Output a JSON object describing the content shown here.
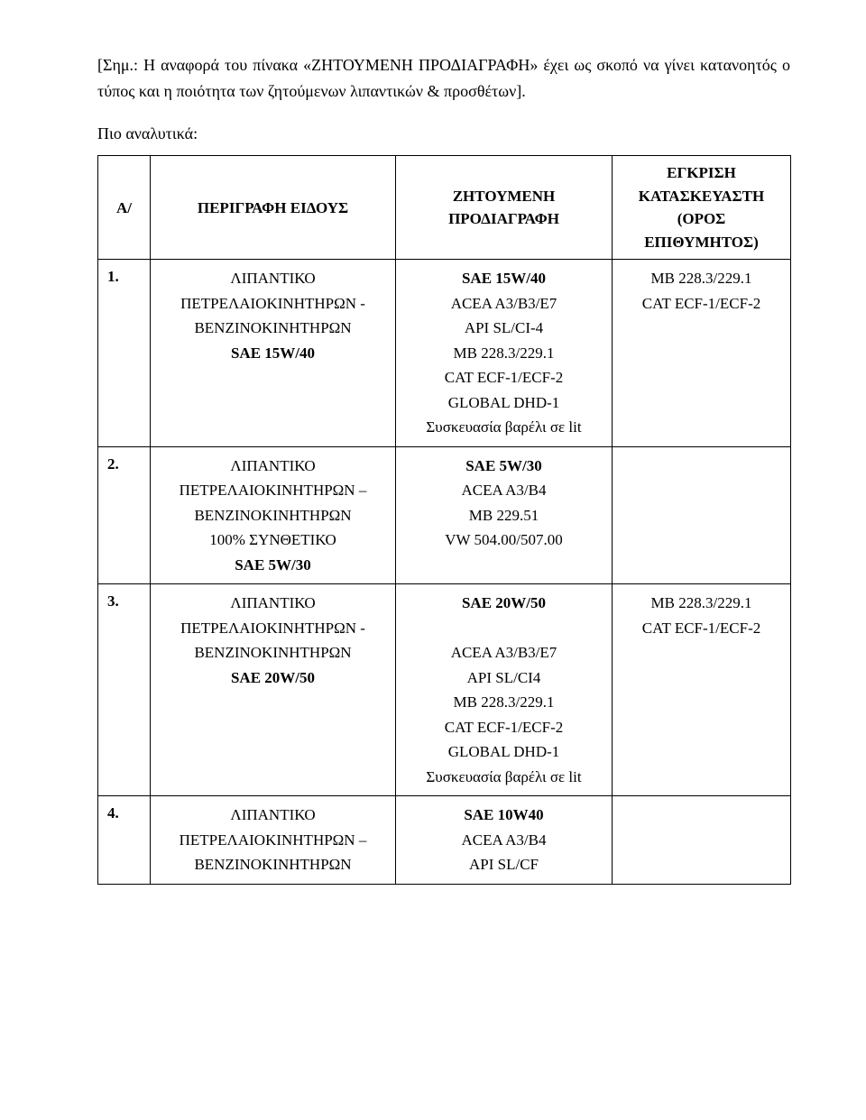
{
  "intro": "[Σημ.: Η αναφορά του πίνακα «ΖΗΤΟΥΜΕΝΗ ΠΡΟΔΙΑΓΡΑΦΗ» έχει ως σκοπό να γίνει κατανοητός ο τύπος και η ποιότητα των ζητούμενων λιπαντικών & προσθέτων].",
  "sub": "Πιο αναλυτικά:",
  "header": {
    "col1": "Α/",
    "col2": "ΠΕΡΙΓΡΑΦΗ ΕΙΔΟΥΣ",
    "col3a": "ΖΗΤΟΥΜΕΝΗ",
    "col3b": "ΠΡΟΔΙΑΓΡΑΦΗ",
    "col4a": "ΕΓΚΡΙΣΗ",
    "col4b": "ΚΑΤΑΣΚΕΥΑΣΤΗ",
    "col4c": "(ΟΡΟΣ ΕΠΙΘΥΜΗΤΟΣ)"
  },
  "rows": [
    {
      "num": "1.",
      "desc": [
        "ΛΙΠΑΝΤΙΚΟ",
        "ΠΕΤΡΕΛΑΙΟΚΙΝΗΤΗΡΩΝ -",
        "ΒΕΝΖΙΝΟΚΙΝΗΤΗΡΩΝ",
        "SAE 15W/40"
      ],
      "desc_bold": [
        false,
        false,
        false,
        true
      ],
      "spec": [
        "SAE 15W/40",
        "ACEA A3/B3/E7",
        "API SL/CI-4",
        "MB 228.3/229.1",
        "CAT ECF-1/ECF-2",
        "GLOBAL DHD-1",
        "Συσκευασία βαρέλι σε lit"
      ],
      "spec_bold": [
        true,
        false,
        false,
        false,
        false,
        false,
        false
      ],
      "appr": [
        "MB 228.3/229.1",
        "CAT ECF-1/ECF-2"
      ]
    },
    {
      "num": "2.",
      "desc": [
        "ΛΙΠΑΝΤΙΚΟ",
        "ΠΕΤΡΕΛΑΙΟΚΙΝΗΤΗΡΩΝ –",
        "ΒΕΝΖΙΝΟΚΙΝΗΤΗΡΩΝ",
        "100% ΣΥΝΘΕΤΙΚΟ",
        "SAE 5W/30"
      ],
      "desc_bold": [
        false,
        false,
        false,
        false,
        true
      ],
      "spec": [
        "SAE 5W/30",
        "ACEA A3/B4",
        "MB 229.51",
        "VW 504.00/507.00"
      ],
      "spec_bold": [
        true,
        false,
        false,
        false
      ],
      "appr": []
    },
    {
      "num": "3.",
      "desc": [
        "ΛΙΠΑΝΤΙΚΟ",
        "ΠΕΤΡΕΛΑΙΟΚΙΝΗΤΗΡΩΝ -",
        "ΒΕΝΖΙΝΟΚΙΝΗΤΗΡΩΝ",
        "SAE 20W/50"
      ],
      "desc_bold": [
        false,
        false,
        false,
        true
      ],
      "spec": [
        "SAE 20W/50",
        "",
        "ACEA A3/B3/E7",
        "API SL/CI4",
        "MB 228.3/229.1",
        "CAT ECF-1/ECF-2",
        "GLOBAL DHD-1",
        "Συσκευασία βαρέλι σε lit"
      ],
      "spec_bold": [
        true,
        false,
        false,
        false,
        false,
        false,
        false,
        false
      ],
      "appr": [
        "MB 228.3/229.1",
        "CAT ECF-1/ECF-2"
      ]
    },
    {
      "num": "4.",
      "desc": [
        "ΛΙΠΑΝΤΙΚΟ",
        "ΠΕΤΡΕΛΑΙΟΚΙΝΗΤΗΡΩΝ –",
        "ΒΕΝΖΙΝΟΚΙΝΗΤΗΡΩΝ"
      ],
      "desc_bold": [
        false,
        false,
        false
      ],
      "spec": [
        "SAE 10W40",
        "ACEA A3/B4",
        "API SL/CF"
      ],
      "spec_bold": [
        true,
        false,
        false
      ],
      "appr": []
    }
  ]
}
